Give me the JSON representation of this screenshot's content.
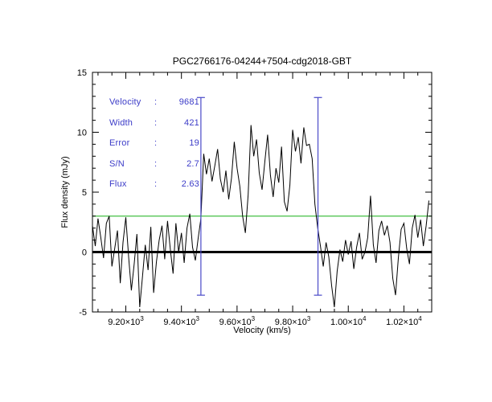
{
  "figure": {
    "background": "#ffffff"
  },
  "chart_data": {
    "type": "line",
    "title": "PGC2766176-04244+7504-cdg2018-GBT",
    "xlabel": "Velocity (km/s)",
    "ylabel": "Flux density (mJy)",
    "xlim": [
      9080,
      10300
    ],
    "ylim": [
      -5,
      15
    ],
    "x_ticks": [
      {
        "value": 9200,
        "base": "9.20×10",
        "exp": "3"
      },
      {
        "value": 9400,
        "base": "9.40×10",
        "exp": "3"
      },
      {
        "value": 9600,
        "base": "9.60×10",
        "exp": "3"
      },
      {
        "value": 9800,
        "base": "9.80×10",
        "exp": "3"
      },
      {
        "value": 10000,
        "base": "1.00×10",
        "exp": "4"
      },
      {
        "value": 10200,
        "base": "1.02×10",
        "exp": "4"
      }
    ],
    "x_minor_step": 50,
    "y_ticks": [
      {
        "value": -5,
        "label": "-5"
      },
      {
        "value": 0,
        "label": "0"
      },
      {
        "value": 5,
        "label": "5"
      },
      {
        "value": 10,
        "label": "10"
      },
      {
        "value": 15,
        "label": "15"
      }
    ],
    "y_minor_step": 1,
    "grid": false,
    "series": {
      "name": "spectrum",
      "color": "#000000",
      "x_start": 9080,
      "x_step": 10,
      "values": [
        2.2,
        0.5,
        2.8,
        1.2,
        -0.5,
        2.4,
        3.0,
        -1.2,
        0.3,
        1.8,
        -2.6,
        0.8,
        2.9,
        -0.4,
        -3.2,
        -1.0,
        1.5,
        -4.6,
        -2.0,
        0.6,
        -1.5,
        2.1,
        -3.4,
        -0.8,
        1.0,
        2.2,
        -0.6,
        2.6,
        0.2,
        -1.8,
        2.4,
        0.0,
        1.6,
        -0.9,
        2.0,
        3.2,
        0.4,
        -0.7,
        1.1,
        2.8,
        8.2,
        6.5,
        7.8,
        5.9,
        7.2,
        8.6,
        6.1,
        5.0,
        6.8,
        4.4,
        6.2,
        9.2,
        7.0,
        5.5,
        3.0,
        1.6,
        4.8,
        10.6,
        8.0,
        9.4,
        6.6,
        5.2,
        7.6,
        9.8,
        6.4,
        4.6,
        7.0,
        5.8,
        8.8,
        4.2,
        3.4,
        5.6,
        10.2,
        8.4,
        9.6,
        7.4,
        10.4,
        8.9,
        9.0,
        7.8,
        4.0,
        2.0,
        0.5,
        -1.2,
        0.8,
        -0.4,
        -2.8,
        -4.6,
        -1.6,
        0.2,
        -0.8,
        1.0,
        -0.2,
        0.9,
        -1.4,
        0.4,
        1.6,
        -0.6,
        0.0,
        1.2,
        4.7,
        0.6,
        -0.9,
        1.8,
        2.6,
        1.4,
        2.2,
        0.8,
        -2.2,
        -3.6,
        -0.5,
        1.9,
        2.4,
        0.3,
        -1.0,
        2.0,
        3.1,
        1.2,
        2.7,
        0.5,
        2.2,
        4.3
      ]
    },
    "baseline": {
      "y": 3.0,
      "color": "#2eb82e"
    },
    "zero_line": {
      "y": 0,
      "color": "#000000",
      "width": 3
    },
    "signal_window": {
      "x1": 9470,
      "x2": 9891,
      "y_min": -3.6,
      "y_max": 12.9,
      "color": "#4a4ac8"
    }
  },
  "annotations": {
    "color": "#3c3cc8",
    "colon": ":",
    "lines": [
      {
        "name": "Velocity",
        "value": "9681"
      },
      {
        "name": "Width",
        "value": "421"
      },
      {
        "name": "Error",
        "value": "19"
      },
      {
        "name": "S/N",
        "value": "2.7"
      },
      {
        "name": "Flux",
        "value": "2.63"
      }
    ]
  }
}
